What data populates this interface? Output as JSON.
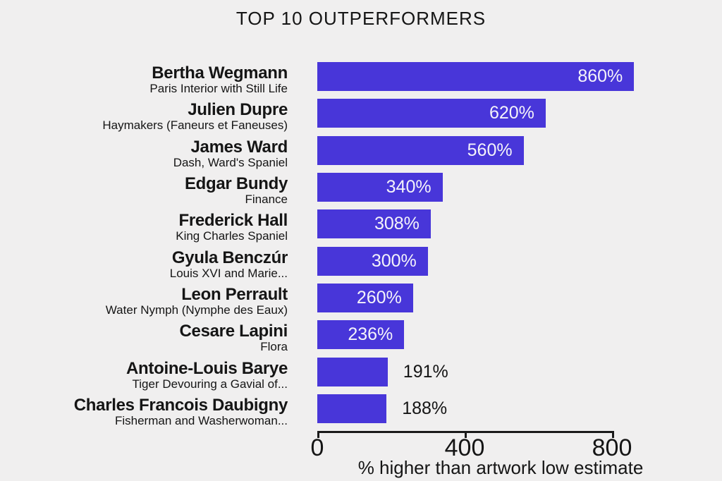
{
  "page": {
    "background_color": "#f0efef",
    "text_color": "#151515"
  },
  "header": {
    "title": "TOP 10 OUTPERFORMERS"
  },
  "chart_data": {
    "type": "bar",
    "orientation": "horizontal",
    "title": "TOP 10 OUTPERFORMERS",
    "xlabel": "% higher than artwork low estimate",
    "ylabel": "",
    "x_ticks": [
      0,
      400,
      800
    ],
    "xlim": [
      0,
      880
    ],
    "grid": false,
    "legend": false,
    "bar_color": "#4836d9",
    "axis_color": "#1a1a1a",
    "value_label_color_inside": "#f4f3fa",
    "value_label_color_outside": "#151515",
    "categories": [
      "Bertha Wegmann",
      "Julien Dupre",
      "James Ward",
      "Edgar Bundy",
      "Frederick Hall",
      "Gyula Benczúr",
      "Leon Perrault",
      "Cesare Lapini",
      "Antoine-Louis Barye",
      "Charles Francois Daubigny"
    ],
    "values": [
      860,
      620,
      560,
      340,
      308,
      300,
      260,
      236,
      191,
      188
    ],
    "bars": [
      {
        "artist": "Bertha Wegmann",
        "artwork": "Paris Interior with Still Life",
        "value": 860,
        "label": "860%",
        "label_placement": "inside"
      },
      {
        "artist": "Julien Dupre",
        "artwork": "Haymakers (Faneurs et Faneuses)",
        "value": 620,
        "label": "620%",
        "label_placement": "inside"
      },
      {
        "artist": "James Ward",
        "artwork": "Dash, Ward's Spaniel",
        "value": 560,
        "label": "560%",
        "label_placement": "inside"
      },
      {
        "artist": "Edgar Bundy",
        "artwork": "Finance",
        "value": 340,
        "label": "340%",
        "label_placement": "inside"
      },
      {
        "artist": "Frederick Hall",
        "artwork": "King Charles Spaniel",
        "value": 308,
        "label": "308%",
        "label_placement": "inside"
      },
      {
        "artist": "Gyula Benczúr",
        "artwork": "Louis XVI and Marie...",
        "value": 300,
        "label": "300%",
        "label_placement": "inside"
      },
      {
        "artist": "Leon Perrault",
        "artwork": "Water Nymph (Nymphe des Eaux)",
        "value": 260,
        "label": "260%",
        "label_placement": "inside"
      },
      {
        "artist": "Cesare Lapini",
        "artwork": "Flora",
        "value": 236,
        "label": "236%",
        "label_placement": "inside"
      },
      {
        "artist": "Antoine-Louis Barye",
        "artwork": "Tiger Devouring a Gavial of...",
        "value": 191,
        "label": "191%",
        "label_placement": "outside"
      },
      {
        "artist": "Charles Francois Daubigny",
        "artwork": "Fisherman and Washerwoman...",
        "value": 188,
        "label": "188%",
        "label_placement": "outside"
      }
    ]
  }
}
